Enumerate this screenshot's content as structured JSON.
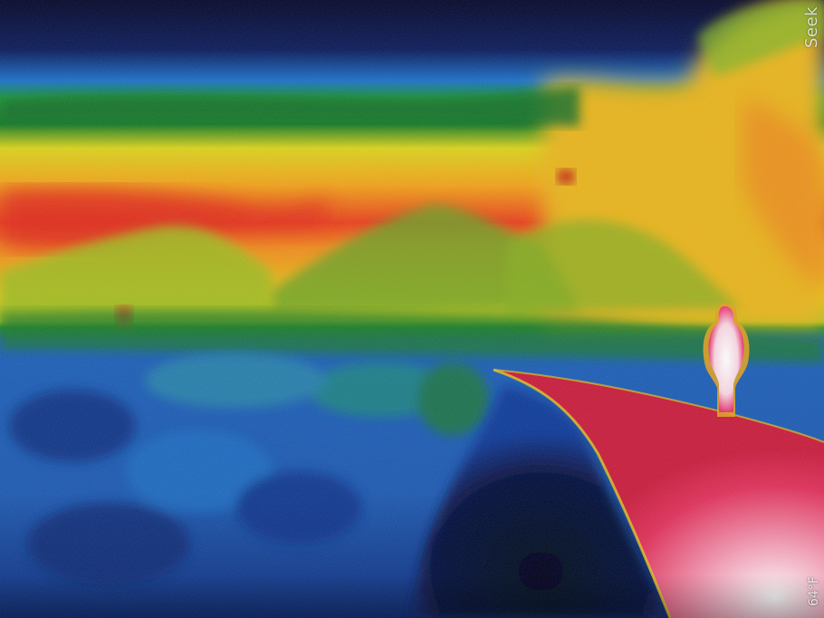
{
  "image": {
    "kind": "thermal-camera-frame",
    "palette": "rainbow-iron"
  },
  "overlay": {
    "brand_text": "Seek",
    "temperature_text": "64°F"
  },
  "colors": {
    "cold": "#06082a",
    "cool": "#1f6fd0",
    "mild": "#1e9a2d",
    "warm": "#f2c21a",
    "hot": "#e0282a",
    "hottest": "#ffffff"
  }
}
